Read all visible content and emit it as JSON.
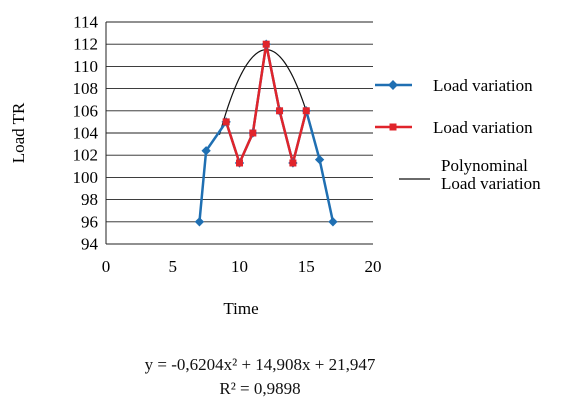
{
  "chart_data": {
    "type": "line",
    "title": "",
    "xlabel": "Time",
    "ylabel": "Load TR",
    "xlim": [
      0,
      20
    ],
    "ylim": [
      94,
      114
    ],
    "xticks": [
      0,
      5,
      10,
      15,
      20
    ],
    "yticks": [
      94,
      96,
      98,
      100,
      102,
      104,
      106,
      108,
      110,
      112,
      114
    ],
    "grid": "horizontal",
    "legend_position": "right",
    "series": [
      {
        "name": "Load variation",
        "color": "#1f6fb2",
        "marker": "diamond",
        "x": [
          7,
          7.5,
          9,
          10,
          11,
          12,
          13,
          14,
          15,
          16,
          17
        ],
        "y": [
          96,
          102.4,
          105,
          101.3,
          104,
          112,
          106,
          101.3,
          106,
          101.6,
          96
        ]
      },
      {
        "name": "Load variation",
        "color": "#e0242b",
        "marker": "square",
        "x": [
          9,
          10,
          11,
          12,
          13,
          14,
          15
        ],
        "y": [
          105,
          101.3,
          104,
          112,
          106,
          101.3,
          106
        ]
      },
      {
        "name": "Polynominal Load variation",
        "color": "#111111",
        "marker": "none",
        "fit": "polynomial",
        "coefficients": [
          -0.6204,
          14.908,
          21.947
        ],
        "x_range": [
          8.5,
          15.5
        ]
      }
    ],
    "legend": {
      "items": [
        {
          "label": "Load variation"
        },
        {
          "label": "Load variation"
        },
        {
          "label_line1": "Polynominal",
          "label_line2": "Load variation"
        }
      ]
    },
    "equation": {
      "line1": "y = -0,6204x² + 14,908x + 21,947",
      "line2": "R² = 0,9898"
    }
  }
}
